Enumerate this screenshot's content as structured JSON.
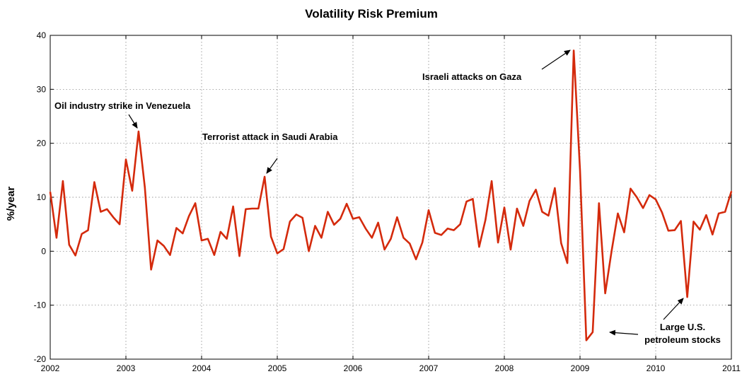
{
  "chart_data": {
    "type": "line",
    "title": "Volatility Risk Premium",
    "xlabel": "",
    "ylabel": "%/year",
    "xlim": [
      2002,
      2011
    ],
    "ylim": [
      -20,
      40
    ],
    "yticks": [
      -20,
      -10,
      0,
      10,
      20,
      30,
      40
    ],
    "xticks": [
      2002,
      2003,
      2004,
      2005,
      2006,
      2007,
      2008,
      2009,
      2010,
      2011
    ],
    "ytick_labels": [
      "-20",
      "-10",
      "0",
      "10",
      "20",
      "30",
      "40"
    ],
    "xtick_labels": [
      "2002",
      "2003",
      "2004",
      "2005",
      "2006",
      "2007",
      "2008",
      "2009",
      "2010",
      "2011"
    ],
    "grid": true,
    "series": [
      {
        "color": "#d42a0c",
        "x": [
          2002.0,
          2002.083,
          2002.167,
          2002.25,
          2002.333,
          2002.417,
          2002.5,
          2002.583,
          2002.667,
          2002.75,
          2002.833,
          2002.917,
          2003.0,
          2003.083,
          2003.167,
          2003.25,
          2003.333,
          2003.417,
          2003.5,
          2003.583,
          2003.667,
          2003.75,
          2003.833,
          2003.917,
          2004.0,
          2004.083,
          2004.167,
          2004.25,
          2004.333,
          2004.417,
          2004.5,
          2004.583,
          2004.667,
          2004.75,
          2004.833,
          2004.917,
          2005.0,
          2005.083,
          2005.167,
          2005.25,
          2005.333,
          2005.417,
          2005.5,
          2005.583,
          2005.667,
          2005.75,
          2005.833,
          2005.917,
          2006.0,
          2006.083,
          2006.167,
          2006.25,
          2006.333,
          2006.417,
          2006.5,
          2006.583,
          2006.667,
          2006.75,
          2006.833,
          2006.917,
          2007.0,
          2007.083,
          2007.167,
          2007.25,
          2007.333,
          2007.417,
          2007.5,
          2007.583,
          2007.667,
          2007.75,
          2007.833,
          2007.917,
          2008.0,
          2008.083,
          2008.167,
          2008.25,
          2008.333,
          2008.417,
          2008.5,
          2008.583,
          2008.667,
          2008.75,
          2008.833,
          2008.917,
          2009.0,
          2009.083,
          2009.167,
          2009.25,
          2009.333,
          2009.417,
          2009.5,
          2009.583,
          2009.667,
          2009.75,
          2009.833,
          2009.917,
          2010.0,
          2010.083,
          2010.167,
          2010.25,
          2010.333,
          2010.417,
          2010.5,
          2010.583,
          2010.667,
          2010.75,
          2010.833,
          2010.917,
          2011.0
        ],
        "y": [
          11.0,
          2.5,
          13.0,
          1.2,
          -0.8,
          3.2,
          3.9,
          12.8,
          7.3,
          7.8,
          6.3,
          5.0,
          17.0,
          11.2,
          22.2,
          11.8,
          -3.4,
          2.0,
          1.0,
          -0.7,
          4.3,
          3.3,
          6.5,
          8.9,
          2.0,
          2.3,
          -0.7,
          3.6,
          2.3,
          8.3,
          -0.9,
          7.8,
          7.9,
          7.9,
          13.8,
          2.7,
          -0.4,
          0.4,
          5.5,
          6.8,
          6.2,
          0.0,
          4.7,
          2.5,
          7.3,
          4.9,
          6.0,
          8.8,
          6.0,
          6.3,
          4.2,
          2.5,
          5.3,
          0.3,
          2.3,
          6.3,
          2.5,
          1.4,
          -1.5,
          1.6,
          7.6,
          3.4,
          3.0,
          4.2,
          3.9,
          5.0,
          9.2,
          9.7,
          0.8,
          5.8,
          13.0,
          1.6,
          8.1,
          0.3,
          7.9,
          4.7,
          9.3,
          11.4,
          7.3,
          6.6,
          11.7,
          1.5,
          -2.2,
          37.2,
          15.0,
          -16.5,
          -15.0,
          8.9,
          -7.8,
          0.0,
          7.0,
          3.5,
          11.6,
          10.0,
          8.0,
          10.4,
          9.6,
          7.2,
          3.8,
          3.9,
          5.6,
          -8.5,
          5.5,
          4.0,
          6.7,
          3.1,
          7.0,
          7.3,
          11.1
        ]
      }
    ],
    "annotations": [
      {
        "text": "Oil industry strike in Venezuela",
        "x": 2003.167,
        "y": 22.2
      },
      {
        "text": "Terrorist attack in Saudi Arabia",
        "x": 2004.833,
        "y": 13.8
      },
      {
        "text": "Israeli attacks on Gaza",
        "x": 2008.917,
        "y": 37.2
      },
      {
        "text": "Large U.S.",
        "x": 2009.167,
        "y": -15.0
      },
      {
        "text": "petroleum stocks",
        "x": 2010.417,
        "y": -8.5
      }
    ]
  }
}
